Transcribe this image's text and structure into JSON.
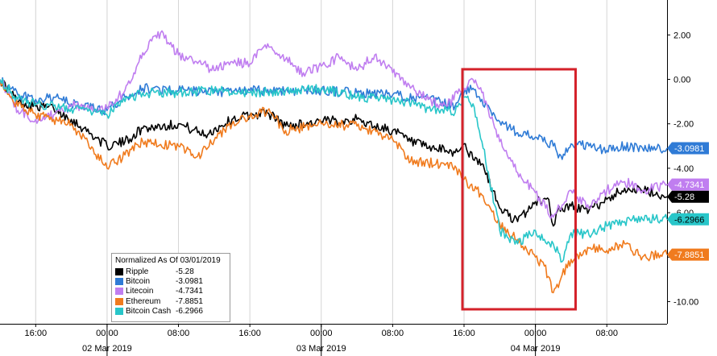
{
  "chart_data": {
    "type": "line",
    "title": "",
    "xlabel": "",
    "ylabel": "",
    "ylim": [
      -11,
      3.5
    ],
    "grid": "vertical",
    "y_axis_position": "right",
    "y_ticks": [
      "2.00",
      "0.00",
      "-2.00",
      "-4.00",
      "-6.00",
      "-8.00",
      "-10.00"
    ],
    "y_tick_values": [
      2,
      0,
      -2,
      -4,
      -6,
      -8,
      -10
    ],
    "x_range": [
      "01 Mar 2019 12:00",
      "04 Mar 2019 14:45"
    ],
    "x_ticks": [
      {
        "label": "16:00",
        "t": "01 Mar 2019 16:00"
      },
      {
        "label": "00:00",
        "t": "02 Mar 2019 00:00"
      },
      {
        "label": "08:00",
        "t": "02 Mar 2019 08:00"
      },
      {
        "label": "16:00",
        "t": "02 Mar 2019 16:00"
      },
      {
        "label": "00:00",
        "t": "03 Mar 2019 00:00"
      },
      {
        "label": "08:00",
        "t": "03 Mar 2019 08:00"
      },
      {
        "label": "16:00",
        "t": "03 Mar 2019 16:00"
      },
      {
        "label": "00:00",
        "t": "04 Mar 2019 00:00"
      },
      {
        "label": "08:00",
        "t": "04 Mar 2019 08:00"
      }
    ],
    "date_labels": [
      {
        "label": "02 Mar 2019",
        "t": "02 Mar 2019 00:00"
      },
      {
        "label": "03 Mar 2019",
        "t": "03 Mar 2019 00:00"
      },
      {
        "label": "04 Mar 2019",
        "t": "04 Mar 2019 00:00"
      }
    ],
    "highlight_box": {
      "from": "03 Mar 2019 16:00",
      "to": "04 Mar 2019 04:30",
      "color": "#d4212a"
    },
    "legend": {
      "title": "Normalized As Of 03/01/2019",
      "placement": "bottom-left",
      "entries": [
        {
          "name": "Ripple",
          "value": "-5.28"
        },
        {
          "name": "Bitcoin",
          "value": "-3.0981"
        },
        {
          "name": "Litecoin",
          "value": "-4.7341"
        },
        {
          "name": "Ethereum",
          "value": "-7.8851"
        },
        {
          "name": "Bitcoin Cash",
          "value": "-6.2966"
        }
      ]
    },
    "series": [
      {
        "name": "Ripple",
        "color": "#000000",
        "last_label": "-5.28",
        "label_text_color": "#ffffff",
        "x": [
          "01 Mar 2019 12:00",
          "01 Mar 2019 14:00",
          "01 Mar 2019 16:00",
          "01 Mar 2019 18:00",
          "01 Mar 2019 20:00",
          "02 Mar 2019 00:00",
          "02 Mar 2019 02:00",
          "02 Mar 2019 04:00",
          "02 Mar 2019 08:00",
          "02 Mar 2019 11:00",
          "02 Mar 2019 14:00",
          "02 Mar 2019 16:00",
          "02 Mar 2019 18:00",
          "02 Mar 2019 20:00",
          "03 Mar 2019 00:00",
          "03 Mar 2019 04:00",
          "03 Mar 2019 06:00",
          "03 Mar 2019 08:00",
          "03 Mar 2019 10:00",
          "03 Mar 2019 12:00",
          "03 Mar 2019 14:00",
          "03 Mar 2019 15:00",
          "03 Mar 2019 16:00",
          "03 Mar 2019 17:00",
          "03 Mar 2019 18:00",
          "03 Mar 2019 20:00",
          "03 Mar 2019 22:00",
          "04 Mar 2019 00:00",
          "04 Mar 2019 01:30",
          "04 Mar 2019 02:00",
          "04 Mar 2019 02:30",
          "04 Mar 2019 04:00",
          "04 Mar 2019 06:00",
          "04 Mar 2019 08:00",
          "04 Mar 2019 10:00",
          "04 Mar 2019 12:00",
          "04 Mar 2019 14:45"
        ],
        "values": [
          0,
          -1.0,
          -1.2,
          -1.3,
          -1.8,
          -3.0,
          -2.8,
          -2.2,
          -2.0,
          -2.5,
          -1.8,
          -1.6,
          -1.5,
          -2.1,
          -1.9,
          -1.8,
          -2.1,
          -2.3,
          -2.8,
          -3.1,
          -3.2,
          -3.3,
          -2.9,
          -3.6,
          -3.8,
          -5.8,
          -6.4,
          -5.5,
          -5.4,
          -6.6,
          -5.9,
          -5.7,
          -5.9,
          -5.4,
          -4.9,
          -5.0,
          -5.28
        ]
      },
      {
        "name": "Bitcoin",
        "color": "#2f7bd6",
        "last_label": "-3.0981",
        "label_text_color": "#ffffff",
        "x": [
          "01 Mar 2019 12:00",
          "01 Mar 2019 14:00",
          "01 Mar 2019 16:00",
          "01 Mar 2019 18:00",
          "01 Mar 2019 20:00",
          "02 Mar 2019 00:00",
          "02 Mar 2019 02:00",
          "02 Mar 2019 04:00",
          "02 Mar 2019 08:00",
          "02 Mar 2019 12:00",
          "02 Mar 2019 16:00",
          "02 Mar 2019 20:00",
          "03 Mar 2019 00:00",
          "03 Mar 2019 04:00",
          "03 Mar 2019 08:00",
          "03 Mar 2019 12:00",
          "03 Mar 2019 15:00",
          "03 Mar 2019 16:00",
          "03 Mar 2019 17:00",
          "03 Mar 2019 18:00",
          "03 Mar 2019 20:00",
          "03 Mar 2019 22:00",
          "04 Mar 2019 00:00",
          "04 Mar 2019 02:00",
          "04 Mar 2019 03:00",
          "04 Mar 2019 04:00",
          "04 Mar 2019 06:00",
          "04 Mar 2019 08:00",
          "04 Mar 2019 10:00",
          "04 Mar 2019 12:00",
          "04 Mar 2019 14:45"
        ],
        "values": [
          0,
          -0.7,
          -0.9,
          -0.8,
          -1.1,
          -1.4,
          -0.8,
          -0.4,
          -0.5,
          -0.6,
          -0.5,
          -0.5,
          -0.5,
          -0.6,
          -0.7,
          -0.9,
          -1.2,
          -0.6,
          -0.4,
          -0.9,
          -1.9,
          -2.4,
          -2.6,
          -3.0,
          -3.6,
          -2.9,
          -3.0,
          -3.2,
          -3.0,
          -3.1,
          -3.0981
        ]
      },
      {
        "name": "Litecoin",
        "color": "#c07ef0",
        "last_label": "-4.7341",
        "label_text_color": "#ffffff",
        "x": [
          "01 Mar 2019 12:00",
          "01 Mar 2019 14:00",
          "01 Mar 2019 16:00",
          "01 Mar 2019 18:00",
          "01 Mar 2019 20:00",
          "02 Mar 2019 00:00",
          "02 Mar 2019 02:00",
          "02 Mar 2019 04:00",
          "02 Mar 2019 06:00",
          "02 Mar 2019 08:00",
          "02 Mar 2019 10:00",
          "02 Mar 2019 12:00",
          "02 Mar 2019 14:00",
          "02 Mar 2019 16:00",
          "02 Mar 2019 18:00",
          "02 Mar 2019 20:00",
          "02 Mar 2019 22:00",
          "03 Mar 2019 00:00",
          "03 Mar 2019 02:00",
          "03 Mar 2019 04:00",
          "03 Mar 2019 06:00",
          "03 Mar 2019 08:00",
          "03 Mar 2019 10:00",
          "03 Mar 2019 12:00",
          "03 Mar 2019 14:00",
          "03 Mar 2019 16:00",
          "03 Mar 2019 17:00",
          "03 Mar 2019 18:00",
          "03 Mar 2019 20:00",
          "03 Mar 2019 22:00",
          "04 Mar 2019 00:00",
          "04 Mar 2019 02:00",
          "04 Mar 2019 04:00",
          "04 Mar 2019 06:00",
          "04 Mar 2019 08:00",
          "04 Mar 2019 10:00",
          "04 Mar 2019 12:00",
          "04 Mar 2019 14:45"
        ],
        "values": [
          0,
          -1.4,
          -1.8,
          -1.6,
          -1.2,
          -1.3,
          -0.5,
          1.2,
          2.1,
          1.1,
          0.8,
          0.4,
          0.8,
          0.7,
          1.6,
          0.9,
          0.3,
          0.6,
          1.0,
          0.4,
          1.1,
          0.3,
          -0.4,
          -0.9,
          -1.2,
          -0.4,
          0.0,
          -0.6,
          -2.8,
          -4.2,
          -5.1,
          -6.2,
          -5.0,
          -5.8,
          -5.0,
          -4.6,
          -5.0,
          -4.7341
        ]
      },
      {
        "name": "Ethereum",
        "color": "#f07b1e",
        "last_label": "-7.8851",
        "label_text_color": "#ffffff",
        "x": [
          "01 Mar 2019 12:00",
          "01 Mar 2019 14:00",
          "01 Mar 2019 16:00",
          "01 Mar 2019 18:00",
          "01 Mar 2019 20:00",
          "02 Mar 2019 00:00",
          "02 Mar 2019 02:00",
          "02 Mar 2019 04:00",
          "02 Mar 2019 08:00",
          "02 Mar 2019 10:00",
          "02 Mar 2019 14:00",
          "02 Mar 2019 16:00",
          "02 Mar 2019 18:00",
          "02 Mar 2019 20:00",
          "03 Mar 2019 00:00",
          "03 Mar 2019 04:00",
          "03 Mar 2019 08:00",
          "03 Mar 2019 10:00",
          "03 Mar 2019 14:00",
          "03 Mar 2019 15:00",
          "03 Mar 2019 16:00",
          "03 Mar 2019 18:00",
          "03 Mar 2019 20:00",
          "03 Mar 2019 22:00",
          "04 Mar 2019 00:00",
          "04 Mar 2019 01:00",
          "04 Mar 2019 02:00",
          "04 Mar 2019 03:00",
          "04 Mar 2019 04:00",
          "04 Mar 2019 06:00",
          "04 Mar 2019 08:00",
          "04 Mar 2019 10:00",
          "04 Mar 2019 12:00",
          "04 Mar 2019 14:45"
        ],
        "values": [
          0,
          -1.2,
          -1.6,
          -1.8,
          -2.0,
          -4.0,
          -3.4,
          -2.8,
          -3.0,
          -3.5,
          -2.0,
          -1.7,
          -1.4,
          -2.3,
          -2.0,
          -2.1,
          -2.7,
          -3.7,
          -3.8,
          -3.9,
          -4.5,
          -5.2,
          -6.5,
          -7.2,
          -8.0,
          -8.4,
          -9.6,
          -8.8,
          -8.1,
          -7.6,
          -7.7,
          -7.4,
          -8.0,
          -7.8851
        ]
      },
      {
        "name": "Bitcoin Cash",
        "color": "#28c6c9",
        "last_label": "-6.2966",
        "label_text_color": "#000000",
        "x": [
          "01 Mar 2019 12:00",
          "01 Mar 2019 14:00",
          "01 Mar 2019 16:00",
          "01 Mar 2019 18:00",
          "01 Mar 2019 20:00",
          "02 Mar 2019 00:00",
          "02 Mar 2019 02:00",
          "02 Mar 2019 04:00",
          "02 Mar 2019 08:00",
          "02 Mar 2019 12:00",
          "02 Mar 2019 16:00",
          "02 Mar 2019 20:00",
          "03 Mar 2019 00:00",
          "03 Mar 2019 04:00",
          "03 Mar 2019 08:00",
          "03 Mar 2019 12:00",
          "03 Mar 2019 15:00",
          "03 Mar 2019 16:00",
          "03 Mar 2019 17:00",
          "03 Mar 2019 18:00",
          "03 Mar 2019 20:00",
          "03 Mar 2019 22:00",
          "04 Mar 2019 00:00",
          "04 Mar 2019 01:00",
          "04 Mar 2019 02:00",
          "04 Mar 2019 03:00",
          "04 Mar 2019 04:00",
          "04 Mar 2019 06:00",
          "04 Mar 2019 08:00",
          "04 Mar 2019 10:00",
          "04 Mar 2019 12:00",
          "04 Mar 2019 14:45"
        ],
        "values": [
          0,
          -0.9,
          -1.1,
          -1.2,
          -1.3,
          -1.6,
          -1.0,
          -0.6,
          -0.6,
          -0.5,
          -0.6,
          -0.5,
          -0.4,
          -0.8,
          -0.9,
          -1.3,
          -1.5,
          -0.8,
          -1.1,
          -2.8,
          -6.8,
          -7.4,
          -6.8,
          -7.2,
          -7.4,
          -8.2,
          -6.9,
          -7.0,
          -6.6,
          -6.4,
          -6.3,
          -6.2966
        ]
      }
    ]
  }
}
